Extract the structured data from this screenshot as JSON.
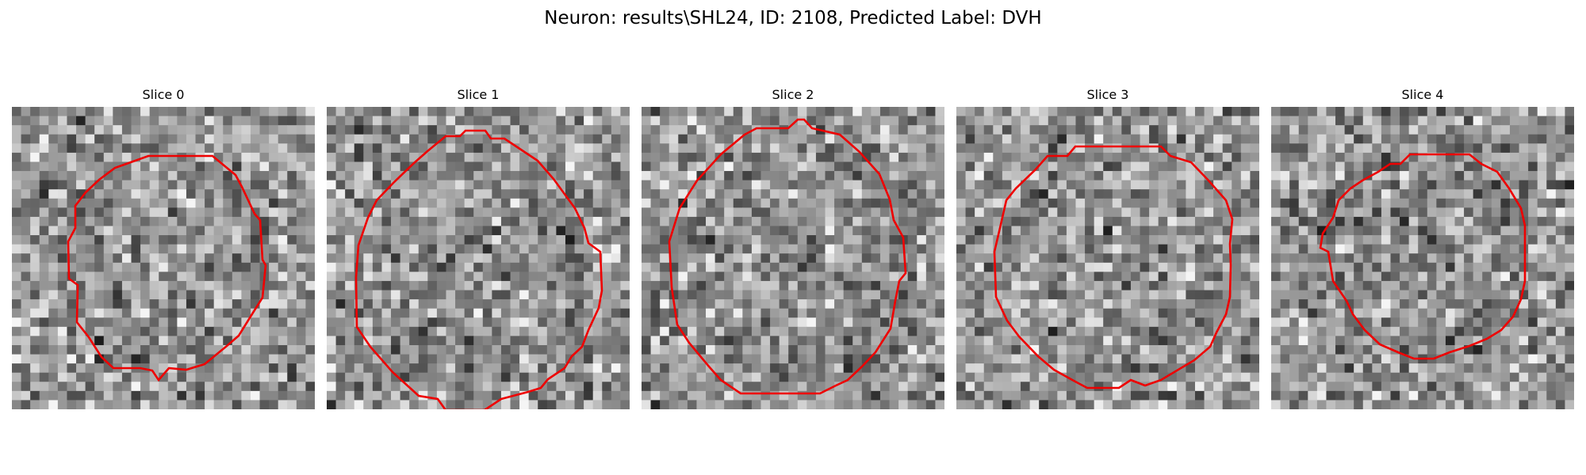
{
  "figure": {
    "title": "Neuron: results\\SHL24, ID: 2108, Predicted Label: DVH"
  },
  "contour_color": "#ee0000",
  "panels": [
    {
      "title": "Slice 0",
      "seed": 11,
      "darkness_bias": 0.45
    },
    {
      "title": "Slice 1",
      "seed": 23,
      "darkness_bias": 0.48
    },
    {
      "title": "Slice 2",
      "seed": 37,
      "darkness_bias": 0.52
    },
    {
      "title": "Slice 3",
      "seed": 51,
      "darkness_bias": 0.4
    },
    {
      "title": "Slice 4",
      "seed": 67,
      "darkness_bias": 0.5
    }
  ]
}
